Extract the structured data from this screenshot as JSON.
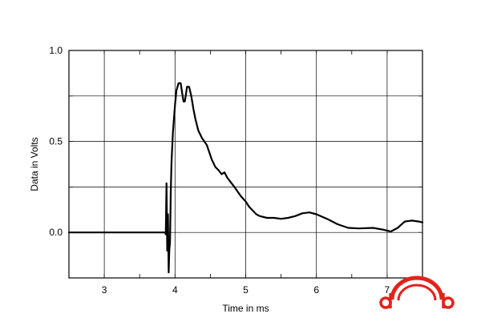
{
  "chart_data": {
    "type": "line",
    "title": "",
    "xlabel": "Time in ms",
    "ylabel": "Data in Volts",
    "xlim": [
      2.5,
      7.5
    ],
    "ylim": [
      -0.25,
      1.0
    ],
    "grid": true,
    "x_ticks": [
      3,
      4,
      5,
      6,
      7
    ],
    "x_tick_labels": [
      "3",
      "4",
      "5",
      "6",
      "7"
    ],
    "y_ticks": [
      0.0,
      0.5,
      1.0
    ],
    "y_tick_labels": [
      "0.0",
      "0.5",
      "1.0"
    ],
    "y_gridlines": [
      0.0,
      0.25,
      0.5,
      0.75
    ],
    "series": [
      {
        "color": "#000000",
        "x": [
          2.5,
          3.7,
          3.86,
          3.87,
          3.88,
          3.89,
          3.9,
          3.91,
          3.92,
          3.93,
          3.94,
          3.95,
          3.97,
          4.0,
          4.02,
          4.05,
          4.08,
          4.1,
          4.12,
          4.14,
          4.17,
          4.2,
          4.23,
          4.26,
          4.29,
          4.33,
          4.38,
          4.45,
          4.52,
          4.57,
          4.62,
          4.66,
          4.7,
          4.74,
          4.78,
          4.84,
          4.93,
          5.0,
          5.05,
          5.1,
          5.15,
          5.2,
          5.3,
          5.4,
          5.5,
          5.6,
          5.7,
          5.8,
          5.9,
          6.0,
          6.15,
          6.3,
          6.45,
          6.6,
          6.8,
          6.95,
          7.05,
          7.15,
          7.25,
          7.35,
          7.45,
          7.5
        ],
        "values": [
          0.0,
          0.0,
          0.0,
          -0.01,
          0.27,
          -0.1,
          0.1,
          -0.22,
          -0.1,
          -0.05,
          0.22,
          0.38,
          0.55,
          0.7,
          0.78,
          0.82,
          0.82,
          0.77,
          0.72,
          0.72,
          0.8,
          0.8,
          0.75,
          0.68,
          0.62,
          0.56,
          0.52,
          0.48,
          0.4,
          0.36,
          0.34,
          0.32,
          0.33,
          0.3,
          0.28,
          0.25,
          0.2,
          0.17,
          0.14,
          0.12,
          0.1,
          0.09,
          0.08,
          0.08,
          0.075,
          0.08,
          0.09,
          0.105,
          0.11,
          0.1,
          0.075,
          0.045,
          0.025,
          0.022,
          0.025,
          0.015,
          0.005,
          0.025,
          0.06,
          0.065,
          0.06,
          0.055
        ]
      }
    ],
    "colors": {
      "line": "#000000",
      "grid": "#000000",
      "logo": "#e2231a"
    }
  }
}
